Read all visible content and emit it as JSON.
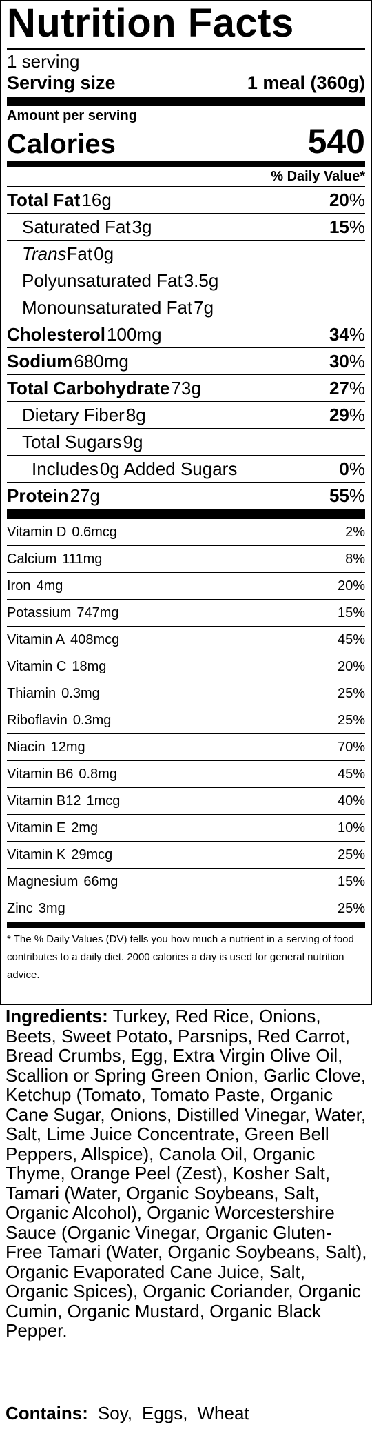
{
  "label": {
    "title": "Nutrition Facts",
    "servings": "1 serving",
    "serving_size_label": "Serving size",
    "serving_size_value": "1 meal (360g)",
    "amount_per_serving": "Amount per serving",
    "calories_label": "Calories",
    "calories_value": "540",
    "dv_header": "% Daily Value*"
  },
  "nutrients": [
    {
      "name": "Total Fat",
      "amount": "16g",
      "pct": "20",
      "bold": true,
      "indent": 0
    },
    {
      "name": "Saturated Fat",
      "amount": "3g",
      "pct": "15",
      "bold": false,
      "indent": 1
    },
    {
      "name": "Trans",
      "name_rest": "Fat",
      "amount": "0g",
      "pct": "",
      "bold": false,
      "indent": 1,
      "italic_prefix": true
    },
    {
      "name": "Polyunsaturated Fat",
      "amount": "3.5g",
      "pct": "",
      "bold": false,
      "indent": 1
    },
    {
      "name": "Monounsaturated Fat",
      "amount": "7g",
      "pct": "",
      "bold": false,
      "indent": 1
    },
    {
      "name": "Cholesterol",
      "amount": "100mg",
      "pct": "34",
      "bold": true,
      "indent": 0
    },
    {
      "name": "Sodium",
      "amount": "680mg",
      "pct": "30",
      "bold": true,
      "indent": 0
    },
    {
      "name": "Total Carbohydrate",
      "amount": "73g",
      "pct": "27",
      "bold": true,
      "indent": 0
    },
    {
      "name": "Dietary Fiber",
      "amount": "8g",
      "pct": "29",
      "bold": false,
      "indent": 1
    },
    {
      "name": "Total Sugars",
      "amount": "9g",
      "pct": "",
      "bold": false,
      "indent": 1
    },
    {
      "name": "Includes",
      "amount": "0g Added Sugars",
      "pct": "0",
      "bold": false,
      "indent": 2
    },
    {
      "name": "Protein",
      "amount": "27g",
      "pct": "55",
      "bold": true,
      "indent": 0
    }
  ],
  "percent_symbol": "%",
  "vitamins": [
    {
      "name": "Vitamin D",
      "amount": "0.6mcg",
      "pct": "2%"
    },
    {
      "name": "Calcium",
      "amount": "111mg",
      "pct": "8%"
    },
    {
      "name": "Iron",
      "amount": "4mg",
      "pct": "20%"
    },
    {
      "name": "Potassium",
      "amount": "747mg",
      "pct": "15%"
    },
    {
      "name": "Vitamin A",
      "amount": "408mcg",
      "pct": "45%"
    },
    {
      "name": "Vitamin C",
      "amount": "18mg",
      "pct": "20%"
    },
    {
      "name": "Thiamin",
      "amount": "0.3mg",
      "pct": "25%"
    },
    {
      "name": "Riboflavin",
      "amount": "0.3mg",
      "pct": "25%"
    },
    {
      "name": "Niacin",
      "amount": "12mg",
      "pct": "70%"
    },
    {
      "name": "Vitamin B6",
      "amount": "0.8mg",
      "pct": "45%"
    },
    {
      "name": "Vitamin B12",
      "amount": "1mcg",
      "pct": "40%"
    },
    {
      "name": "Vitamin E",
      "amount": "2mg",
      "pct": "10%"
    },
    {
      "name": "Vitamin K",
      "amount": "29mcg",
      "pct": "25%"
    },
    {
      "name": "Magnesium",
      "amount": "66mg",
      "pct": "15%"
    },
    {
      "name": "Zinc",
      "amount": "3mg",
      "pct": "25%"
    }
  ],
  "footnote": "* The % Daily Values (DV) tells you how much a nutrient in a serving of food contributes to a daily diet. 2000 calories a day is used for general nutrition advice.",
  "ingredients": {
    "label": "Ingredients:",
    "text": "Turkey, Red Rice, Onions, Beets, Sweet Potato, Parsnips, Red Carrot, Bread Crumbs, Egg, Extra Virgin Olive Oil, Scallion or Spring Green Onion, Garlic Clove, Ketchup (Tomato, Tomato Paste, Organic Cane Sugar, Onions, Distilled Vinegar, Water, Salt, Lime Juice Concentrate, Green Bell Peppers, Allspice), Canola Oil, Organic Thyme, Orange Peel (Zest), Kosher Salt, Tamari (Water, Organic Soybeans, Salt, Organic Alcohol), Organic Worcestershire Sauce (Organic Vinegar, Organic Gluten-Free Tamari (Water, Organic Soybeans, Salt), Organic Evaporated Cane Juice, Salt, Organic Spices), Organic Coriander, Organic Cumin, Organic Mustard, Organic Black Pepper."
  },
  "contains": {
    "label": "Contains:",
    "items": [
      "Soy,",
      "Eggs,",
      "Wheat"
    ]
  }
}
